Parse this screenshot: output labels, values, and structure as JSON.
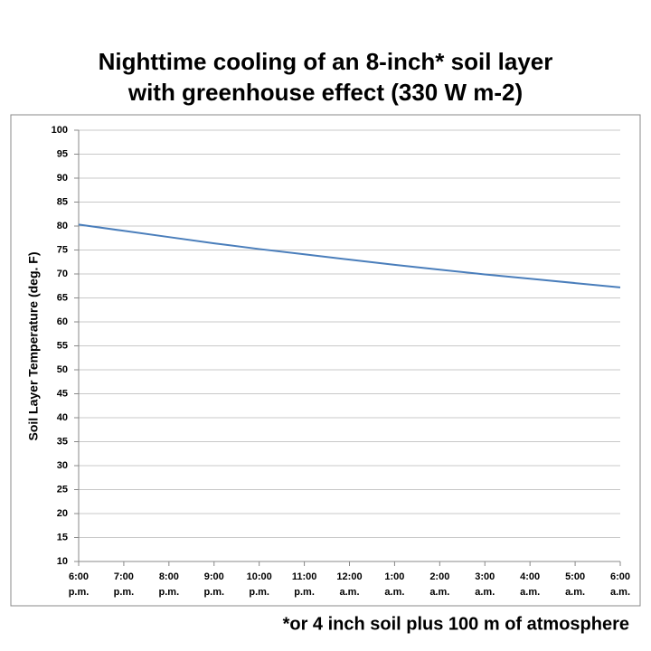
{
  "chart_data": {
    "type": "line",
    "title": [
      "Nighttime cooling of an 8-inch* soil layer",
      "with greenhouse effect (330 W m-2)"
    ],
    "y_label": "Soil Layer Temperature (deg. F)",
    "footnote": "*or 4 inch soil plus 100 m of atmosphere",
    "categories": [
      "6:00 p.m.",
      "7:00 p.m.",
      "8:00 p.m.",
      "9:00 p.m.",
      "10:00 p.m.",
      "11:00 p.m.",
      "12:00 a.m.",
      "1:00 a.m.",
      "2:00 a.m.",
      "3:00 a.m.",
      "4:00 a.m.",
      "5:00 a.m.",
      "6:00 a.m."
    ],
    "values": [
      80.3,
      79.0,
      77.7,
      76.4,
      75.2,
      74.1,
      73.0,
      71.9,
      70.9,
      69.9,
      69.0,
      68.1,
      67.2
    ],
    "color": "#4a7ebb",
    "ylim": [
      10,
      100
    ],
    "yticks": [
      10,
      15,
      20,
      25,
      30,
      35,
      40,
      45,
      50,
      55,
      60,
      65,
      70,
      75,
      80,
      85,
      90,
      95,
      100
    ],
    "grid": true
  }
}
